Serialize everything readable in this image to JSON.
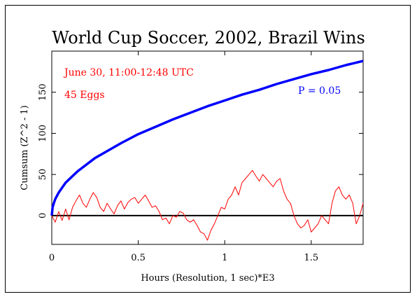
{
  "chart_data": {
    "type": "line",
    "title": "World Cup Soccer, 2002, Brazil Wins",
    "xlabel": "Hours (Resolution, 1 sec)*E3",
    "ylabel": "Cumsum (Z^2 - 1)",
    "xlim": [
      0,
      1.8
    ],
    "ylim": [
      -35,
      200
    ],
    "xticks": [
      0,
      0.5,
      1,
      1.5
    ],
    "xtick_labels": [
      "0",
      "0.5",
      "1",
      "1.5"
    ],
    "yticks": [
      0,
      50,
      100,
      150
    ],
    "ytick_labels": [
      "0",
      "50",
      "100",
      "150"
    ],
    "grid": false,
    "annotations": {
      "date": "June 30, 11:00-12:48 UTC",
      "eggs": "45 Eggs",
      "p_label": "P = 0.05"
    },
    "colors": {
      "data": "#ff0000",
      "envelope": "#0000ff",
      "baseline": "#000000"
    },
    "series": [
      {
        "role": "cumulative deviation",
        "color": "#ff0000",
        "x": [
          0,
          0.02,
          0.04,
          0.06,
          0.08,
          0.1,
          0.12,
          0.14,
          0.16,
          0.18,
          0.2,
          0.22,
          0.24,
          0.26,
          0.28,
          0.3,
          0.32,
          0.34,
          0.36,
          0.38,
          0.4,
          0.42,
          0.44,
          0.46,
          0.48,
          0.5,
          0.52,
          0.54,
          0.56,
          0.58,
          0.6,
          0.62,
          0.64,
          0.66,
          0.68,
          0.7,
          0.72,
          0.74,
          0.76,
          0.78,
          0.8,
          0.82,
          0.84,
          0.86,
          0.88,
          0.9,
          0.92,
          0.94,
          0.96,
          0.98,
          1.0,
          1.02,
          1.04,
          1.06,
          1.08,
          1.1,
          1.12,
          1.14,
          1.16,
          1.18,
          1.2,
          1.22,
          1.24,
          1.26,
          1.28,
          1.3,
          1.32,
          1.34,
          1.36,
          1.38,
          1.4,
          1.42,
          1.44,
          1.46,
          1.48,
          1.5,
          1.52,
          1.54,
          1.56,
          1.58,
          1.6,
          1.62,
          1.64,
          1.66,
          1.68,
          1.7,
          1.72,
          1.74,
          1.76,
          1.78,
          1.8
        ],
        "y": [
          0,
          -8,
          5,
          -6,
          8,
          -5,
          10,
          18,
          25,
          15,
          10,
          20,
          28,
          22,
          10,
          5,
          15,
          8,
          2,
          12,
          18,
          8,
          16,
          20,
          22,
          15,
          20,
          25,
          18,
          10,
          12,
          5,
          -5,
          -3,
          -10,
          0,
          -2,
          5,
          3,
          -5,
          -8,
          -5,
          -12,
          -20,
          -22,
          -30,
          -18,
          -10,
          0,
          10,
          8,
          20,
          25,
          35,
          25,
          40,
          45,
          50,
          55,
          48,
          42,
          50,
          45,
          40,
          35,
          42,
          45,
          30,
          20,
          15,
          0,
          -10,
          -15,
          -12,
          -5,
          -20,
          -15,
          -10,
          0,
          -5,
          -10,
          15,
          30,
          35,
          25,
          20,
          25,
          15,
          -10,
          0,
          15
        ]
      },
      {
        "role": "P = 0.05 envelope",
        "color": "#0000ff",
        "x": [
          0,
          0.005,
          0.01,
          0.02,
          0.04,
          0.06,
          0.08,
          0.1,
          0.15,
          0.2,
          0.25,
          0.3,
          0.4,
          0.5,
          0.6,
          0.7,
          0.8,
          0.9,
          1.0,
          1.1,
          1.2,
          1.3,
          1.4,
          1.5,
          1.6,
          1.7,
          1.8
        ],
        "y": [
          0,
          10,
          14,
          20,
          28,
          34,
          40,
          44,
          54,
          62,
          70,
          76,
          88,
          99,
          108,
          117,
          125,
          133,
          140,
          147,
          153,
          160,
          166,
          172,
          177,
          183,
          188
        ]
      }
    ]
  }
}
